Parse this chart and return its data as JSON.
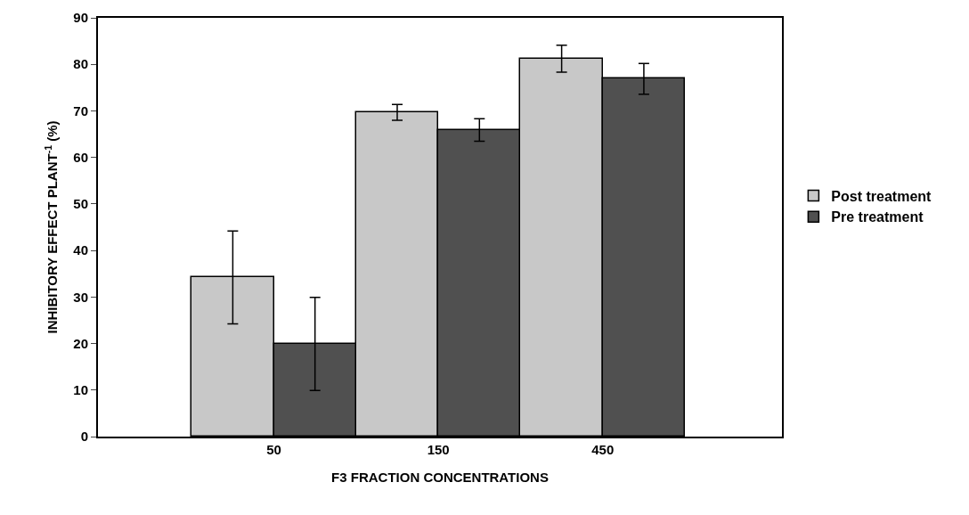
{
  "chart_data": {
    "type": "bar",
    "xlabel": "F3 FRACTION CONCENTRATIONS",
    "ylabel": "INHIBITORY EFFECT PLANT$^{-1}$ (%)",
    "categories": [
      "50",
      "150",
      "450"
    ],
    "series": [
      {
        "name": "Post treatment",
        "color": "#c8c8c8",
        "values": [
          34.2,
          69.7,
          81.2
        ],
        "errors": [
          10,
          1.7,
          2.9
        ]
      },
      {
        "name": "Pre treatment",
        "color": "#505050",
        "values": [
          19.9,
          65.9,
          76.9
        ],
        "errors": [
          10,
          2.4,
          3.3
        ]
      }
    ],
    "ylim": [
      0,
      90
    ],
    "yticks": [
      0,
      10,
      20,
      30,
      40,
      50,
      60,
      70,
      80,
      90
    ],
    "grid": false,
    "legend": "right"
  }
}
